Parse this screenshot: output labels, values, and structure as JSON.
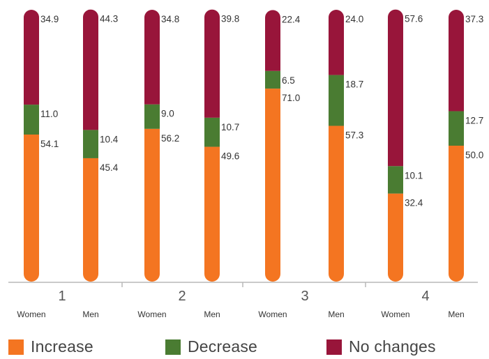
{
  "chart_data": {
    "type": "bar",
    "stacked": true,
    "groups": [
      "1",
      "2",
      "3",
      "4"
    ],
    "categories": [
      "Women",
      "Men",
      "Women",
      "Men",
      "Women",
      "Men",
      "Women",
      "Men"
    ],
    "series": [
      {
        "name": "Increase",
        "color": "#f47521",
        "values": [
          54.1,
          45.4,
          56.2,
          49.6,
          71.0,
          57.3,
          32.4,
          50.0
        ],
        "labels": [
          "54.1",
          "45.4",
          "56.2",
          "49.6",
          "71.0",
          "57.3",
          "32.4",
          "50.0"
        ]
      },
      {
        "name": "Decrease",
        "color": "#4a7c32",
        "values": [
          11.0,
          10.4,
          9.0,
          10.7,
          6.5,
          18.7,
          10.1,
          12.7
        ],
        "labels": [
          "11.0",
          "10.4",
          "9.0",
          "10.7",
          "6.5",
          "18.7",
          "10.1",
          "12.7"
        ]
      },
      {
        "name": "No changes",
        "color": "#98153a",
        "values": [
          34.9,
          44.3,
          34.8,
          39.8,
          22.4,
          24.0,
          57.6,
          37.3
        ],
        "labels": [
          "34.9",
          "44.3",
          "34.8",
          "39.8",
          "22.4",
          "24.0",
          "57.6",
          "37.3"
        ]
      }
    ],
    "ylim": [
      0,
      100
    ],
    "grid": false,
    "legend_position": "bottom"
  }
}
